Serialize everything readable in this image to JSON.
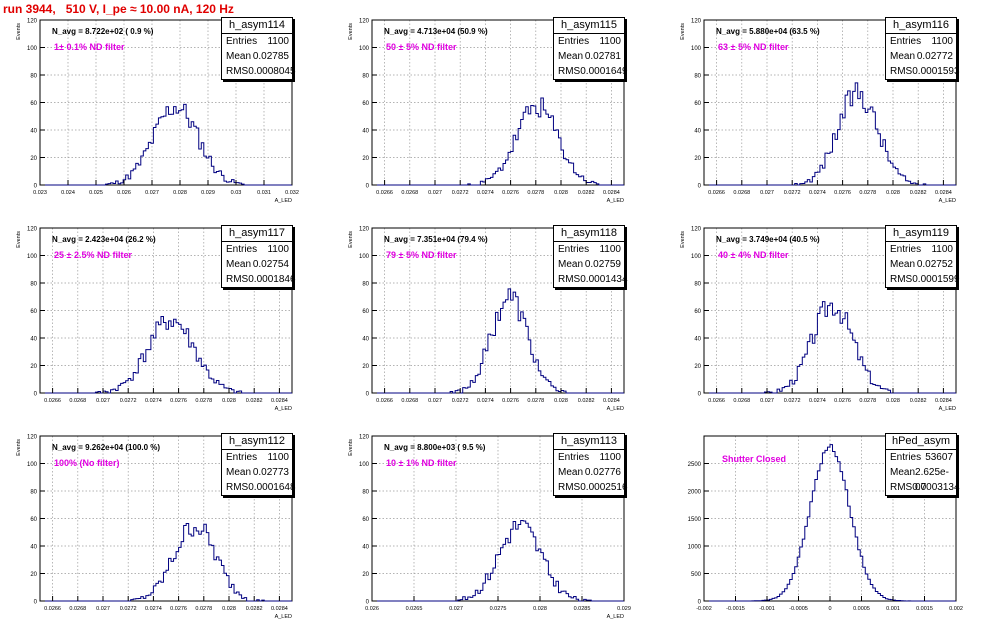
{
  "header": {
    "title": "run 3944,   510 V, I_pe ≈ 10.00 nA, 120 Hz"
  },
  "colors": {
    "histogram": "#000080",
    "title": "#e00000",
    "annotation": "#e000e0",
    "grid": "#9a9a9a"
  },
  "stats_labels": {
    "entries": "Entries",
    "mean": "Mean",
    "rms": "RMS"
  },
  "panels": [
    {
      "name": "h_asym114",
      "entries": "1100",
      "mean": "0.02785",
      "rms": "0.0008045",
      "navg": "N_avg = 8.722e+02 ( 0.9 %)",
      "annotation": "1± 0.1% ND filter",
      "ylabel": "Events",
      "xlabel": "A_LED"
    },
    {
      "name": "h_asym115",
      "entries": "1100",
      "mean": "0.02781",
      "rms": "0.0001649",
      "navg": "N_avg = 4.713e+04 (50.9 %)",
      "annotation": "50 ± 5% ND filter",
      "ylabel": "Events",
      "xlabel": "A_LED"
    },
    {
      "name": "h_asym116",
      "entries": "1100",
      "mean": "0.02772",
      "rms": "0.0001593",
      "navg": "N_avg = 5.880e+04 (63.5 %)",
      "annotation": "63 ± 5% ND filter",
      "ylabel": "Events",
      "xlabel": "A_LED"
    },
    {
      "name": "h_asym117",
      "entries": "1100",
      "mean": "0.02754",
      "rms": "0.0001846",
      "navg": "N_avg = 2.423e+04 (26.2 %)",
      "annotation": "25 ± 2.5% ND filter",
      "ylabel": "Events",
      "xlabel": "A_LED"
    },
    {
      "name": "h_asym118",
      "entries": "1100",
      "mean": "0.02759",
      "rms": "0.0001434",
      "navg": "N_avg = 7.351e+04 (79.4 %)",
      "annotation": "79 ± 5% ND filter",
      "ylabel": "Events",
      "xlabel": "A_LED"
    },
    {
      "name": "h_asym119",
      "entries": "1100",
      "mean": "0.02752",
      "rms": "0.0001599",
      "navg": "N_avg = 3.749e+04 (40.5 %)",
      "annotation": "40 ± 4% ND filter",
      "ylabel": "Events",
      "xlabel": "A_LED"
    },
    {
      "name": "h_asym112",
      "entries": "1100",
      "mean": "0.02773",
      "rms": "0.0001648",
      "navg": "N_avg = 9.262e+04 (100.0 %)",
      "annotation": "100% (No filter)",
      "ylabel": "Events",
      "xlabel": "A_LED"
    },
    {
      "name": "h_asym113",
      "entries": "1100",
      "mean": "0.02776",
      "rms": "0.0002516",
      "navg": "N_avg = 8.800e+03 ( 9.5 %)",
      "annotation": "10 ± 1% ND filter",
      "ylabel": "Events",
      "xlabel": "A_LED"
    },
    {
      "name": "hPed_asym",
      "entries": "53607",
      "mean": "2.625e-07",
      "rms": "0.0003134",
      "navg": "",
      "annotation": "Shutter Closed",
      "ylabel": "",
      "xlabel": ""
    }
  ],
  "chart_data": [
    {
      "type": "histogram",
      "title": "h_asym114",
      "ylim": [
        0,
        120
      ],
      "xlim": [
        0.023,
        0.032
      ],
      "yticks": [
        "0",
        "20",
        "40",
        "60",
        "80",
        "100",
        "120"
      ],
      "xticks": [
        "0.023",
        "0.024",
        "0.025",
        "0.026",
        "0.027",
        "0.028",
        "0.029",
        "0.03",
        "0.031",
        "0.032"
      ],
      "grid": true,
      "mean": 0.02785,
      "sigma": 0.0008045,
      "peak": 57,
      "nbins": 100,
      "seed": 11
    },
    {
      "type": "histogram",
      "title": "h_asym115",
      "ylim": [
        0,
        120
      ],
      "xlim": [
        0.0265,
        0.0285
      ],
      "yticks": [
        "0",
        "20",
        "40",
        "60",
        "80",
        "100",
        "120"
      ],
      "xticks": [
        "0.0266",
        "0.0268",
        "0.027",
        "0.0272",
        "0.0274",
        "0.0276",
        "0.0278",
        "0.028",
        "0.0282",
        "0.0284"
      ],
      "grid": true,
      "mean": 0.02781,
      "sigma": 0.0001649,
      "peak": 57,
      "nbins": 100,
      "seed": 23
    },
    {
      "type": "histogram",
      "title": "h_asym116",
      "ylim": [
        0,
        120
      ],
      "xlim": [
        0.0265,
        0.0285
      ],
      "yticks": [
        "0",
        "20",
        "40",
        "60",
        "80",
        "100",
        "120"
      ],
      "xticks": [
        "0.0266",
        "0.0268",
        "0.027",
        "0.0272",
        "0.0274",
        "0.0276",
        "0.0278",
        "0.028",
        "0.0282",
        "0.0284"
      ],
      "grid": true,
      "mean": 0.02772,
      "sigma": 0.0001593,
      "peak": 67,
      "nbins": 100,
      "seed": 37
    },
    {
      "type": "histogram",
      "title": "h_asym117",
      "ylim": [
        0,
        120
      ],
      "xlim": [
        0.0265,
        0.0285
      ],
      "yticks": [
        "0",
        "20",
        "40",
        "60",
        "80",
        "100",
        "120"
      ],
      "xticks": [
        "0.0266",
        "0.0268",
        "0.027",
        "0.0272",
        "0.0274",
        "0.0276",
        "0.0278",
        "0.028",
        "0.0282",
        "0.0284"
      ],
      "grid": true,
      "mean": 0.02754,
      "sigma": 0.0001846,
      "peak": 53,
      "nbins": 100,
      "seed": 41
    },
    {
      "type": "histogram",
      "title": "h_asym118",
      "ylim": [
        0,
        120
      ],
      "xlim": [
        0.0265,
        0.0285
      ],
      "yticks": [
        "0",
        "20",
        "40",
        "60",
        "80",
        "100",
        "120"
      ],
      "xticks": [
        "0.0266",
        "0.0268",
        "0.027",
        "0.0272",
        "0.0274",
        "0.0276",
        "0.0278",
        "0.028",
        "0.0282",
        "0.0284"
      ],
      "grid": true,
      "mean": 0.02759,
      "sigma": 0.0001434,
      "peak": 70,
      "nbins": 100,
      "seed": 53
    },
    {
      "type": "histogram",
      "title": "h_asym119",
      "ylim": [
        0,
        120
      ],
      "xlim": [
        0.0265,
        0.0285
      ],
      "yticks": [
        "0",
        "20",
        "40",
        "60",
        "80",
        "100",
        "120"
      ],
      "xticks": [
        "0.0266",
        "0.0268",
        "0.027",
        "0.0272",
        "0.0274",
        "0.0276",
        "0.0278",
        "0.028",
        "0.0282",
        "0.0284"
      ],
      "grid": true,
      "mean": 0.02752,
      "sigma": 0.0001599,
      "peak": 65,
      "nbins": 100,
      "seed": 67
    },
    {
      "type": "histogram",
      "title": "h_asym112",
      "ylim": [
        0,
        120
      ],
      "xlim": [
        0.0265,
        0.0285
      ],
      "yticks": [
        "0",
        "20",
        "40",
        "60",
        "80",
        "100",
        "120"
      ],
      "xticks": [
        "0.0266",
        "0.0268",
        "0.027",
        "0.0272",
        "0.0274",
        "0.0276",
        "0.0278",
        "0.028",
        "0.0282",
        "0.0284"
      ],
      "grid": true,
      "mean": 0.02773,
      "sigma": 0.0001648,
      "peak": 55,
      "nbins": 100,
      "seed": 79
    },
    {
      "type": "histogram",
      "title": "h_asym113",
      "ylim": [
        0,
        120
      ],
      "xlim": [
        0.026,
        0.029
      ],
      "yticks": [
        "0",
        "20",
        "40",
        "60",
        "80",
        "100",
        "120"
      ],
      "xticks": [
        "0.026",
        "0.0265",
        "0.027",
        "0.0275",
        "0.028",
        "0.0285",
        "0.029"
      ],
      "grid": true,
      "mean": 0.02776,
      "sigma": 0.0002516,
      "peak": 55,
      "nbins": 100,
      "seed": 83
    },
    {
      "type": "histogram",
      "title": "hPed_asym",
      "ylim": [
        0,
        3000
      ],
      "xlim": [
        -0.002,
        0.002
      ],
      "yticks": [
        "0",
        "500",
        "1000",
        "1500",
        "2000",
        "2500"
      ],
      "xticks": [
        "-0.002",
        "-0.0015",
        "-0.001",
        "-0.0005",
        "0",
        "0.0005",
        "0.001",
        "0.0015",
        "0.002"
      ],
      "grid": true,
      "mean": 0.0,
      "sigma": 0.0003134,
      "peak": 2800,
      "nbins": 100,
      "seed": 97
    }
  ]
}
